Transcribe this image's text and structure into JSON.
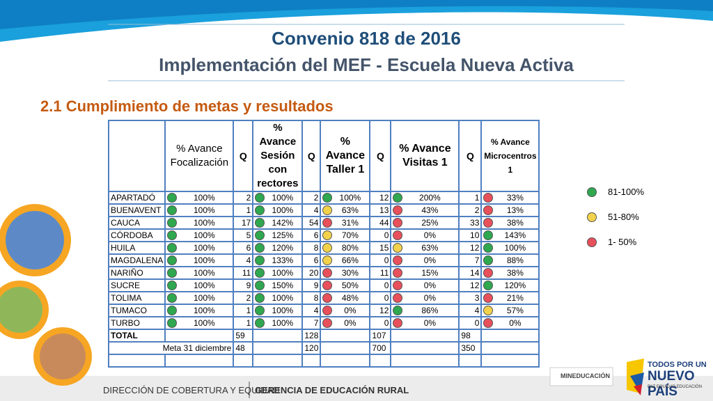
{
  "header": {
    "title": "Convenio 818 de 2016",
    "subtitle": "Implementación del MEF - Escuela Nueva Activa"
  },
  "section_title": "2.1 Cumplimiento de metas y resultados",
  "table": {
    "columns": [
      "% Avance Focalización",
      "Q",
      "% Avance Sesión con rectores",
      "Q",
      "% Avance Taller 1",
      "Q",
      "% Avance Visitas 1",
      "Q",
      "% Avance Microcentros 1"
    ],
    "rows": [
      {
        "name": "APARTADÓ",
        "values": [
          "100%",
          "2",
          "100%",
          "2",
          "100%",
          "12",
          "200%",
          "1",
          "33%"
        ],
        "dots": [
          "#2fa84f",
          "#2fa84f",
          "#2fa84f",
          "#2fa84f",
          "#e8505b"
        ]
      },
      {
        "name": "BUENAVENT",
        "values": [
          "100%",
          "1",
          "100%",
          "4",
          "63%",
          "13",
          "43%",
          "2",
          "13%"
        ],
        "dots": [
          "#2fa84f",
          "#2fa84f",
          "#f2d24b",
          "#e8505b",
          "#e8505b"
        ]
      },
      {
        "name": "CAUCA",
        "values": [
          "100%",
          "17",
          "142%",
          "54",
          "31%",
          "44",
          "25%",
          "33",
          "38%"
        ],
        "dots": [
          "#2fa84f",
          "#2fa84f",
          "#e8505b",
          "#e8505b",
          "#e8505b"
        ]
      },
      {
        "name": "CÓRDOBA",
        "values": [
          "100%",
          "5",
          "125%",
          "6",
          "70%",
          "0",
          "0%",
          "10",
          "143%"
        ],
        "dots": [
          "#2fa84f",
          "#2fa84f",
          "#f2d24b",
          "#e8505b",
          "#2fa84f"
        ]
      },
      {
        "name": "HUILA",
        "values": [
          "100%",
          "6",
          "120%",
          "8",
          "80%",
          "15",
          "63%",
          "12",
          "100%"
        ],
        "dots": [
          "#2fa84f",
          "#2fa84f",
          "#f2d24b",
          "#f2d24b",
          "#2fa84f"
        ]
      },
      {
        "name": "MAGDALENA",
        "values": [
          "100%",
          "4",
          "133%",
          "6",
          "66%",
          "0",
          "0%",
          "7",
          "88%"
        ],
        "dots": [
          "#2fa84f",
          "#2fa84f",
          "#f2d24b",
          "#e8505b",
          "#2fa84f"
        ]
      },
      {
        "name": "NARIÑO",
        "values": [
          "100%",
          "11",
          "100%",
          "20",
          "30%",
          "11",
          "15%",
          "14",
          "38%"
        ],
        "dots": [
          "#2fa84f",
          "#2fa84f",
          "#e8505b",
          "#e8505b",
          "#e8505b"
        ]
      },
      {
        "name": "SUCRE",
        "values": [
          "100%",
          "9",
          "150%",
          "9",
          "50%",
          "0",
          "0%",
          "12",
          "120%"
        ],
        "dots": [
          "#2fa84f",
          "#2fa84f",
          "#e8505b",
          "#e8505b",
          "#2fa84f"
        ]
      },
      {
        "name": "TOLIMA",
        "values": [
          "100%",
          "2",
          "100%",
          "8",
          "48%",
          "0",
          "0%",
          "3",
          "21%"
        ],
        "dots": [
          "#2fa84f",
          "#2fa84f",
          "#e8505b",
          "#e8505b",
          "#e8505b"
        ]
      },
      {
        "name": "TUMACO",
        "values": [
          "100%",
          "1",
          "100%",
          "4",
          "0%",
          "12",
          "86%",
          "4",
          "57%"
        ],
        "dots": [
          "#2fa84f",
          "#2fa84f",
          "#e8505b",
          "#2fa84f",
          "#f2d24b"
        ]
      },
      {
        "name": "TURBO",
        "values": [
          "100%",
          "1",
          "100%",
          "7",
          "0%",
          "0",
          "0%",
          "0",
          "0%"
        ],
        "dots": [
          "#2fa84f",
          "#2fa84f",
          "#e8505b",
          "#e8505b",
          "#e8505b"
        ]
      }
    ],
    "total": {
      "label": "TOTAL",
      "values": [
        "59",
        "128",
        "107",
        "98"
      ]
    },
    "goal": {
      "label": "Meta 31 diciembre",
      "values": [
        "48",
        "120",
        "700",
        "350"
      ]
    }
  },
  "legend": [
    {
      "label": "81-100%",
      "color": "#2fa84f"
    },
    {
      "label": "51-80%",
      "color": "#f2d24b"
    },
    {
      "label": "1- 50%",
      "color": "#e8505b"
    }
  ],
  "footer": {
    "left": "DIRECCIÓN DE COBERTURA Y EQUIDAD",
    "right": "GERENCIA DE EDUCACIÓN RURAL",
    "ministry": "MINEDUCACIÓN",
    "brand_top": "TODOS POR UN",
    "brand_main": "NUEVO PAÍS",
    "brand_tag": "PAZ  EQUIDAD  EDUCACIÓN"
  }
}
